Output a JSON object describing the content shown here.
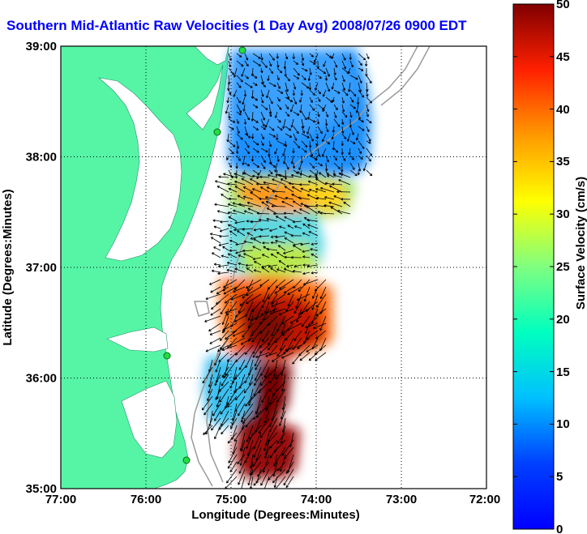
{
  "title": "Southern Mid-Atlantic Raw Velocities (1 Day Avg) 2008/07/26 0900 EDT",
  "map": {
    "xlabel": "Longitude (Degrees:Minutes)",
    "ylabel": "Latitude (Degrees:Minutes)",
    "x_ticks": [
      "77:00",
      "76:00",
      "75:00",
      "74:00",
      "73:00",
      "72:00"
    ],
    "y_ticks": [
      "39:00",
      "38:00",
      "37:00",
      "36:00",
      "35:00"
    ],
    "lon_range": [
      -77,
      -72
    ],
    "lat_range": [
      35,
      39
    ],
    "land_color": "#55f5a5",
    "grid": "dotted"
  },
  "colorbar": {
    "label": "Surface Velocity (cm/s)",
    "ticks": [
      "0",
      "5",
      "10",
      "15",
      "20",
      "25",
      "30",
      "35",
      "40",
      "45",
      "50"
    ],
    "range": [
      0,
      50
    ],
    "colormap": "jet"
  },
  "chart_data": {
    "type": "heatmap",
    "title": "Southern Mid-Atlantic Raw Velocities (1 Day Avg) 2008/07/26 0900 EDT",
    "xlabel": "Longitude (Degrees:Minutes)",
    "ylabel": "Latitude (Degrees:Minutes)",
    "xlim": [
      -77,
      -72
    ],
    "ylim": [
      35,
      39
    ],
    "color_range_cm_s": [
      0,
      50
    ],
    "regions": [
      {
        "lon": [
          -75.0,
          -73.6
        ],
        "lat": [
          37.9,
          38.95
        ],
        "speed_cm_s": 8
      },
      {
        "lon": [
          -75.0,
          -73.9
        ],
        "lat": [
          37.4,
          37.8
        ],
        "speed_cm_s": 33
      },
      {
        "lon": [
          -75.0,
          -74.1
        ],
        "lat": [
          36.9,
          37.3
        ],
        "speed_cm_s": 17
      },
      {
        "lon": [
          -75.0,
          -74.0
        ],
        "lat": [
          36.2,
          36.85
        ],
        "speed_cm_s": 44
      },
      {
        "lon": [
          -75.2,
          -74.7
        ],
        "lat": [
          35.6,
          36.1
        ],
        "speed_cm_s": 12
      },
      {
        "lon": [
          -75.0,
          -74.4
        ],
        "lat": [
          35.1,
          35.6
        ],
        "speed_cm_s": 48
      }
    ]
  }
}
